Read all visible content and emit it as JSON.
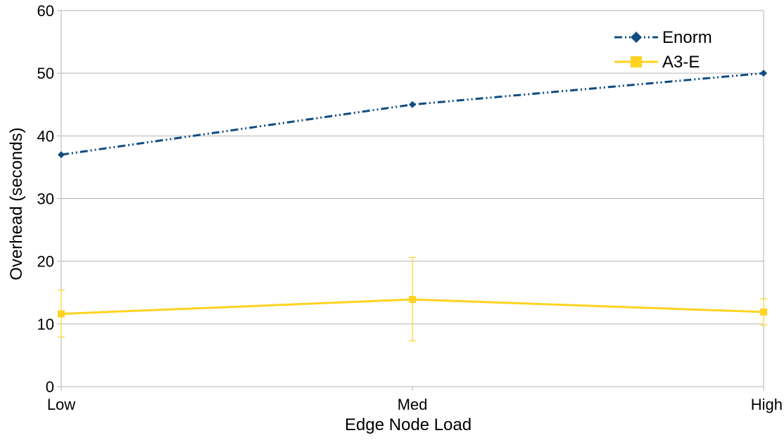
{
  "chart_data": {
    "type": "line",
    "title": "",
    "xlabel": "Edge Node Load",
    "ylabel": "Overhead (seconds)",
    "categories": [
      "Low",
      "Med",
      "High"
    ],
    "ylim": [
      0,
      60
    ],
    "yticks": [
      0,
      10,
      20,
      30,
      40,
      50,
      60
    ],
    "grid": true,
    "legend_position": "top-right",
    "series": [
      {
        "name": "Enorm",
        "values": [
          37,
          45,
          50
        ],
        "color": "#0f4c81",
        "line_style": "dash-dot-dot",
        "marker": "diamond"
      },
      {
        "name": "A3-E",
        "values": [
          11.6,
          13.9,
          11.9
        ],
        "error_low": [
          7.9,
          7.3,
          9.8
        ],
        "error_high": [
          15.4,
          20.6,
          14.0
        ],
        "color": "#ffd320",
        "line_style": "solid",
        "marker": "square"
      }
    ]
  }
}
